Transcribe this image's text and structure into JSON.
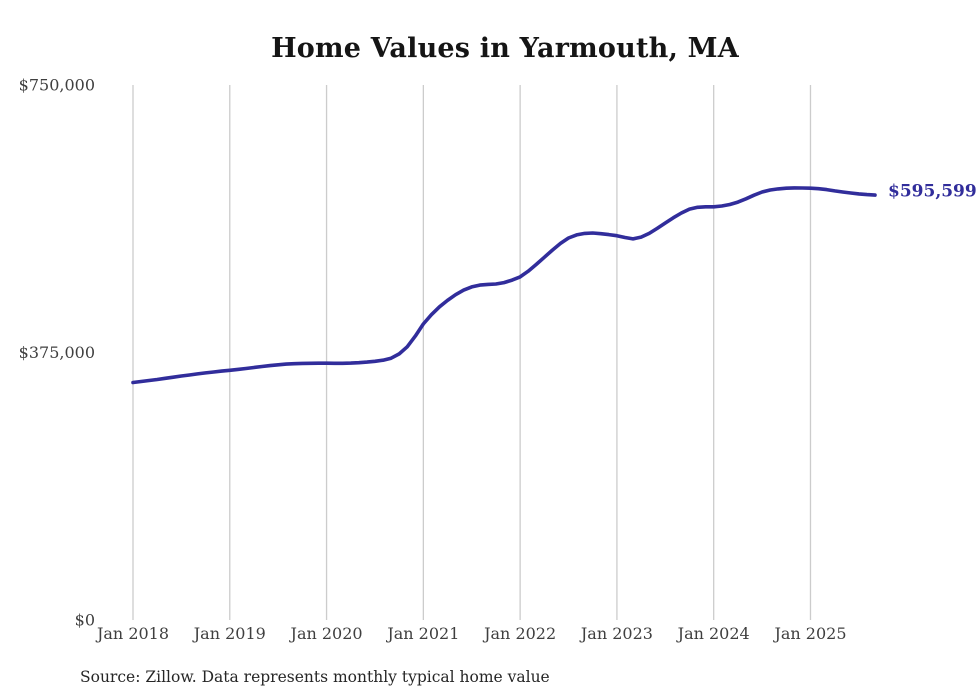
{
  "chart_data": {
    "type": "line",
    "title": "Home Values in Yarmouth, MA",
    "source_note": "Source: Zillow. Data represents monthly typical home value",
    "series_name": "Monthly typical home value",
    "x_start": "Jan 2018",
    "x_end": "Sep 2025",
    "frequency": "monthly",
    "x_tick_labels": [
      "Jan 2018",
      "Jan 2019",
      "Jan 2020",
      "Jan 2021",
      "Jan 2022",
      "Jan 2023",
      "Jan 2024",
      "Jan 2025"
    ],
    "y_ticks": [
      {
        "value": 0,
        "label": "$0"
      },
      {
        "value": 375000,
        "label": "$375,000"
      },
      {
        "value": 750000,
        "label": "$750,000"
      }
    ],
    "ylim": [
      0,
      750000
    ],
    "grid": "vertical-only",
    "legend": "none",
    "end_label": "$595,599",
    "end_value": 595599,
    "line_color": "#312d9b",
    "grid_color": "#cccccc",
    "axis_text_color": "#3f3f3f",
    "values": [
      333000,
      334300,
      335700,
      337200,
      338800,
      340400,
      342000,
      343500,
      345000,
      346400,
      347700,
      348900,
      350000,
      351300,
      352600,
      354000,
      355400,
      356700,
      357800,
      358700,
      359300,
      359700,
      359900,
      360000,
      360000,
      359900,
      359900,
      360100,
      360700,
      361500,
      362600,
      364200,
      367000,
      373000,
      383000,
      398000,
      415000,
      428000,
      439000,
      448000,
      456000,
      462500,
      467000,
      469500,
      470500,
      471000,
      473000,
      476500,
      481000,
      489000,
      498500,
      508500,
      518500,
      528000,
      535500,
      539800,
      541900,
      542500,
      541500,
      540300,
      538800,
      536200,
      534200,
      536800,
      542000,
      549000,
      556600,
      564000,
      570500,
      576000,
      578500,
      579200,
      579300,
      580400,
      582500,
      585800,
      590500,
      595500,
      600000,
      602800,
      604300,
      605300,
      605700,
      605600,
      605300,
      604600,
      603300,
      601500,
      600000,
      598600,
      597300,
      596300,
      595599
    ]
  }
}
